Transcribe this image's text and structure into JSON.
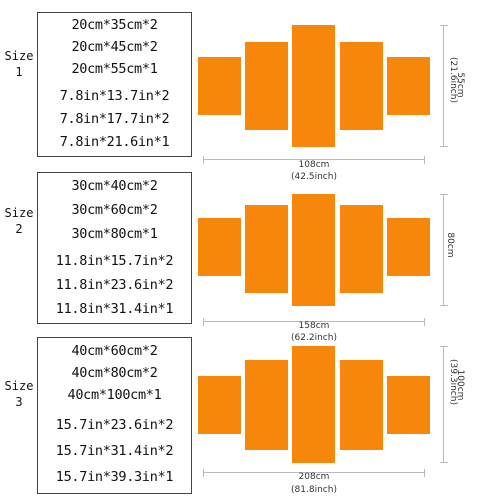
{
  "sizes": [
    {
      "label_word": "Size",
      "label_num": "1",
      "lines": [
        "20cm*35cm*2",
        "20cm*45cm*2",
        "20cm*55cm*1",
        "7.8in*13.7in*2",
        "7.8in*17.7in*2",
        "7.8in*21.6in*1"
      ],
      "width_cm": "108cm",
      "width_in": "(42.5inch)",
      "height_cm": "55cm",
      "height_in": "(21.6inch)"
    },
    {
      "label_word": "Size",
      "label_num": "2",
      "lines": [
        "30cm*40cm*2",
        "30cm*60cm*2",
        "30cm*80cm*1",
        "11.8in*15.7in*2",
        "11.8in*23.6in*2",
        "11.8in*31.4in*1"
      ],
      "width_cm": "158cm",
      "width_in": "(62.2inch)",
      "height_cm": "80cm",
      "height_in": ""
    },
    {
      "label_word": "Size",
      "label_num": "3",
      "lines": [
        "40cm*60cm*2",
        "40cm*80cm*2",
        "40cm*100cm*1",
        "15.7in*23.6in*2",
        "15.7in*31.4in*2",
        "15.7in*39.3in*1"
      ],
      "width_cm": "208cm",
      "width_in": "(81.8inch)",
      "height_cm": "100cm",
      "height_in": "(39.3inch)"
    }
  ],
  "colors": {
    "panel": "#f7870a",
    "border": "#444444"
  }
}
